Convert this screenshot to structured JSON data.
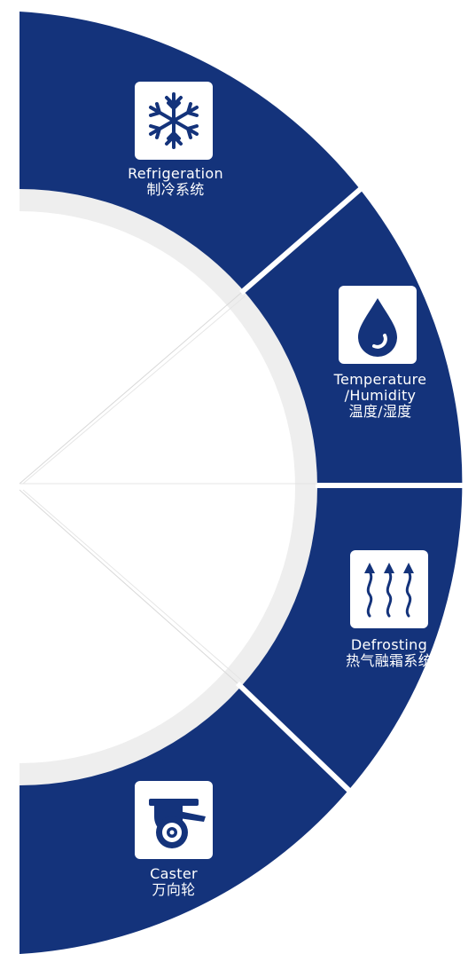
{
  "colors": {
    "segment_fill": "#14337b",
    "ring_color": "#eeeeee",
    "background": "#ffffff",
    "icon_box": "#ffffff"
  },
  "segments": [
    {
      "icon": "snowflake-icon",
      "label_en": "Refrigeration",
      "label_zh": "制冷系统"
    },
    {
      "icon": "water-drop-icon",
      "label_en": "Temperature",
      "label_en_2": "/Humidity",
      "label_zh": "温度/湿度"
    },
    {
      "icon": "heat-waves-icon",
      "label_en": "Defrosting",
      "label_zh": "热气融霜系统"
    },
    {
      "icon": "caster-wheel-icon",
      "label_en": "Caster",
      "label_zh": "万向轮"
    }
  ]
}
